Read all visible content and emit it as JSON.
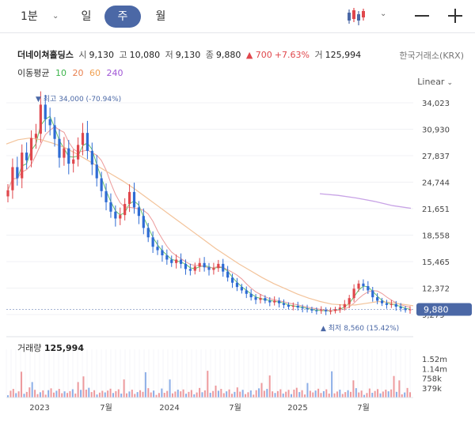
{
  "toolbar": {
    "timeframes": [
      "1분",
      "일",
      "주",
      "월"
    ],
    "active_timeframe": "주"
  },
  "info": {
    "name": "더네이쳐홀딩스",
    "open_label": "시",
    "open": "9,130",
    "high_label": "고",
    "high": "10,080",
    "low_label": "저",
    "low": "9,130",
    "close_label": "종",
    "close": "9,880",
    "change": "▲ 700",
    "change_pct": "+7.63%",
    "volume_label": "거",
    "volume": "125,994",
    "exchange": "한국거래소(KRX)"
  },
  "ma": {
    "label": "이동평균",
    "periods": [
      {
        "label": "10",
        "color": "#3cb44b"
      },
      {
        "label": "20",
        "color": "#e8804f"
      },
      {
        "label": "60",
        "color": "#f0a050"
      },
      {
        "label": "240",
        "color": "#a056d6"
      }
    ]
  },
  "colors": {
    "up": "#e0474c",
    "down": "#2e6bd4",
    "accent": "#4b68a6"
  },
  "chart_data": {
    "type": "candlestick",
    "scale": "Linear",
    "y_ticks": [
      "34,023",
      "30,930",
      "27,837",
      "24,744",
      "21,651",
      "18,558",
      "15,465",
      "12,372",
      "9,279"
    ],
    "y_tick_values": [
      34023,
      30930,
      27837,
      24744,
      21651,
      18558,
      15465,
      12372,
      9279
    ],
    "ylim": [
      9279,
      34023
    ],
    "x_ticks": [
      "2023",
      "7월",
      "2024",
      "7월",
      "2025",
      "7월"
    ],
    "current_price": "9,880",
    "current_value": 9880,
    "max_label": "최고 34,000 (-70.94%)",
    "max_value": 34000,
    "min_label": "최저 8,560 (15.42%)",
    "min_value": 8560,
    "volume_label": "거래량",
    "volume_value": "125,994",
    "volume_ticks": [
      "1.52m",
      "1.14m",
      "758k",
      "379k"
    ],
    "volume_tick_values": [
      1520000,
      1140000,
      758000,
      379000
    ],
    "close_series": [
      23800,
      26500,
      25200,
      28200,
      27300,
      29900,
      30400,
      33800,
      32100,
      31400,
      29800,
      27600,
      28700,
      26900,
      27400,
      29100,
      30500,
      28400,
      26800,
      25200,
      23700,
      22400,
      21300,
      20500,
      20900,
      22200,
      23600,
      21800,
      20800,
      19400,
      18300,
      17200,
      16800,
      16200,
      15700,
      15300,
      15700,
      15200,
      14600,
      14400,
      14900,
      15300,
      14800,
      14500,
      14700,
      15200,
      14300,
      13600,
      13000,
      12500,
      12100,
      11700,
      11300,
      11000,
      11200,
      10900,
      10700,
      10900,
      10600,
      10400,
      10200,
      10300,
      10100,
      10000,
      9900,
      9750,
      9700,
      9800,
      9650,
      9700,
      9900,
      10100,
      10500,
      11200,
      12300,
      12900,
      12600,
      12100,
      11300,
      10900,
      10600,
      10400,
      10500,
      10200,
      10000,
      9800,
      9880
    ],
    "ma60_series": [
      29200,
      29700,
      29900,
      29700,
      29300,
      28800,
      28100,
      27300,
      26500,
      25700,
      24900,
      24000,
      23000,
      22000,
      21000,
      20000,
      19000,
      18000,
      17000,
      16100,
      15200,
      14400,
      13600,
      12900,
      12300,
      11700,
      11200,
      10800,
      10500,
      10400,
      10400,
      10600,
      10800,
      10700,
      10500,
      10300
    ],
    "ma240_series": [
      23400,
      23200,
      22900,
      22500,
      22000,
      21700
    ]
  }
}
